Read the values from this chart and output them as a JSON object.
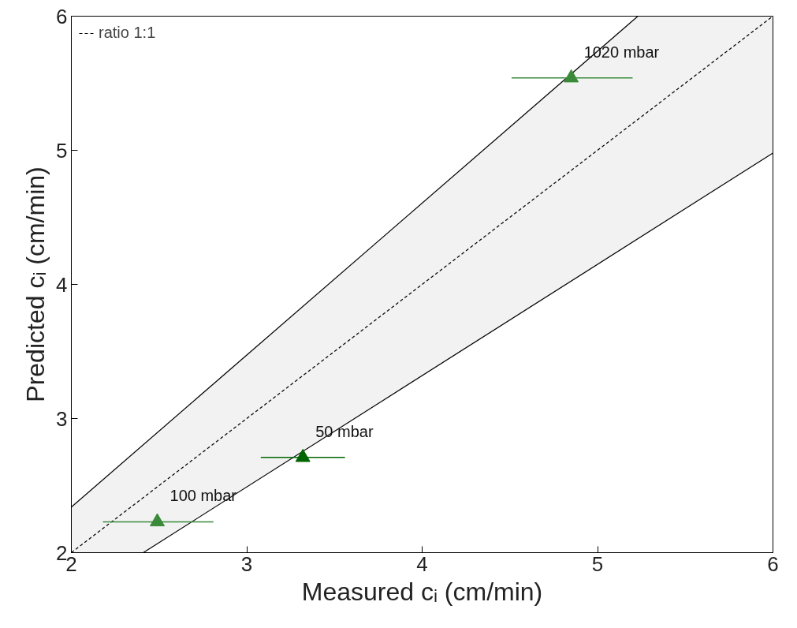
{
  "chart_data": {
    "type": "scatter",
    "xlabel": "Measured cᵢ (cm/min)",
    "ylabel": "Predicted cᵢ (cm/min)",
    "xlim": [
      2,
      6
    ],
    "ylim": [
      2,
      6
    ],
    "xticks": [
      2,
      3,
      4,
      5,
      6
    ],
    "yticks": [
      2,
      3,
      4,
      5,
      6
    ],
    "grid": false,
    "legend": "top left",
    "series": [
      {
        "type": "line",
        "color": "#000000",
        "line_style": "solid",
        "x": [
          2,
          5.23
        ],
        "values": [
          2.34,
          6
        ]
      },
      {
        "type": "line",
        "color": "#000000",
        "line_style": "solid",
        "x": [
          2.41,
          6
        ],
        "values": [
          2,
          4.98
        ]
      },
      {
        "type": "line",
        "name": "ratio 1:1",
        "color": "#000000",
        "line_style": "dashed",
        "x": [
          2,
          2.41,
          5.23,
          6
        ],
        "values": [
          2,
          2.41,
          5.23,
          6
        ],
        "lower": [
          2,
          2,
          4.34,
          4.98
        ],
        "upper": [
          2.34,
          2.8,
          6,
          6
        ]
      },
      {
        "marker": "triangle",
        "colors": [
          "#3a8a3a",
          "#006400",
          "#3a8a3a"
        ],
        "x": [
          2.49,
          3.32,
          4.85
        ],
        "values": [
          2.23,
          2.71,
          5.54
        ],
        "xerrors": [
          [
            2.18,
            2.81
          ],
          [
            3.08,
            3.56
          ],
          [
            4.51,
            5.2
          ]
        ]
      }
    ],
    "annotations": [
      {
        "text": "100 mbar",
        "x": 2.49,
        "y": 2.23
      },
      {
        "text": "50 mbar",
        "x": 3.32,
        "y": 2.71
      },
      {
        "text": "1020 mbar",
        "x": 4.85,
        "y": 5.54
      }
    ]
  }
}
